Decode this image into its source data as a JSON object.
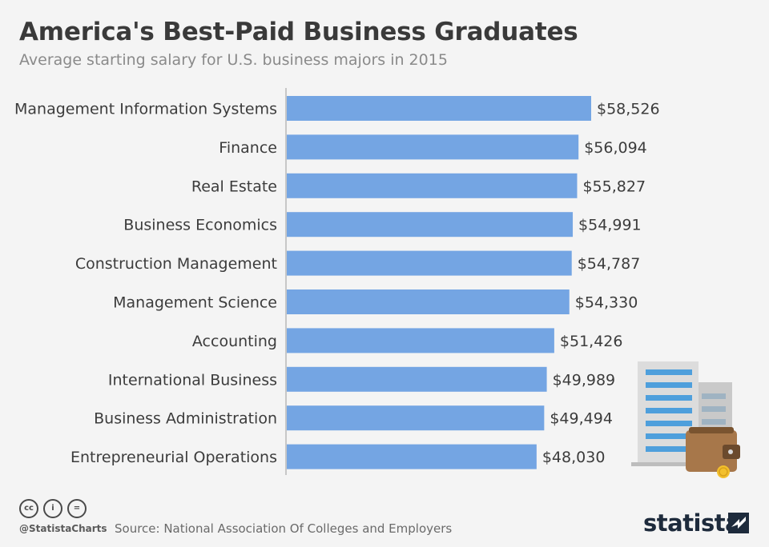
{
  "header": {
    "title": "America's Best-Paid Business Graduates",
    "subtitle": "Average starting salary for U.S. business majors in 2015"
  },
  "chart_data": {
    "type": "bar",
    "orientation": "horizontal",
    "title": "America's Best-Paid Business Graduates",
    "subtitle": "Average starting salary for U.S. business majors in 2015",
    "categories": [
      "Management Information Systems",
      "Finance",
      "Real Estate",
      "Business Economics",
      "Construction Management",
      "Management Science",
      "Accounting",
      "International Business",
      "Business Administration",
      "Entrepreneurial Operations"
    ],
    "values": [
      58526,
      56094,
      55827,
      54991,
      54787,
      54330,
      51426,
      49989,
      49494,
      48030
    ],
    "value_labels": [
      "$58,526",
      "$56,094",
      "$55,827",
      "$54,991",
      "$54,787",
      "$54,330",
      "$51,426",
      "$49,989",
      "$49,494",
      "$48,030"
    ],
    "xlim": [
      0,
      60000
    ],
    "grid": false,
    "legend": "none",
    "colors": {
      "bar": "#74a5e3"
    }
  },
  "footer": {
    "license_icons": [
      "cc-icon",
      "by-icon",
      "nd-icon"
    ],
    "license_glyphs": [
      "cc",
      "i",
      "="
    ],
    "handle": "@StatistaCharts",
    "source": "Source: National Association Of Colleges and Employers",
    "brand": "statista"
  },
  "illustration": {
    "icons": [
      "office-building-icon",
      "wallet-icon",
      "coin-icon"
    ],
    "colors": {
      "building": "#4e9fdc",
      "wallet": "#a7774a",
      "coin": "#f3c02c"
    }
  }
}
